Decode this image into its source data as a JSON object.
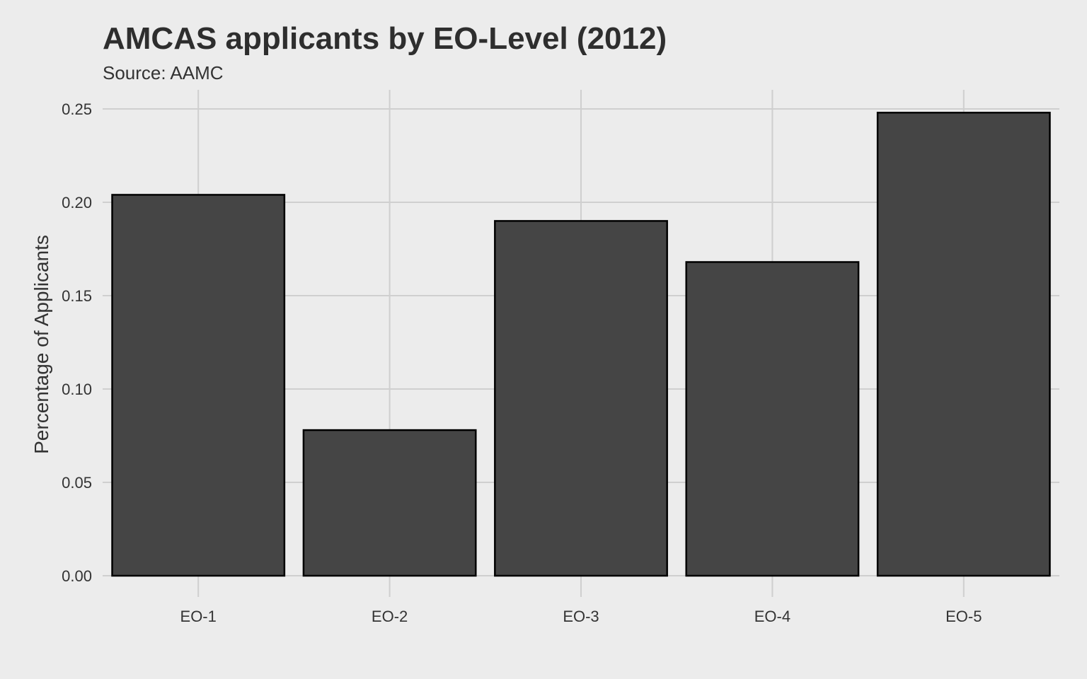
{
  "chart_data": {
    "type": "bar",
    "title": "AMCAS applicants by EO-Level (2012)",
    "subtitle": "Source: AAMC",
    "xlabel": "",
    "ylabel": "Percentage of Applicants",
    "categories": [
      "EO-1",
      "EO-2",
      "EO-3",
      "EO-4",
      "EO-5"
    ],
    "values": [
      0.204,
      0.078,
      0.19,
      0.168,
      0.248
    ],
    "ylim": [
      0,
      0.26
    ],
    "yticks": [
      0,
      0.05,
      0.1,
      0.15,
      0.2,
      0.25
    ],
    "ytick_labels": [
      "0.00",
      "0.05",
      "0.10",
      "0.15",
      "0.20",
      "0.25"
    ],
    "grid": true,
    "legend": "none",
    "colors": {
      "background": "#ececec",
      "grid": "#cfcfcf",
      "bar_fill": "#454545",
      "bar_stroke": "#000000",
      "text": "#333333"
    }
  }
}
